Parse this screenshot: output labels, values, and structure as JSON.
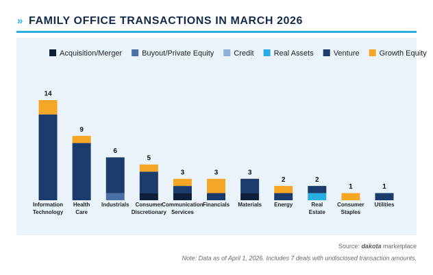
{
  "chart_data": {
    "type": "stacked-bar",
    "title": "FAMILY OFFICE TRANSACTIONS IN MARCH 2026",
    "categories": [
      "Information Technology",
      "Health Care",
      "Industrials",
      "Consumer Discretionary",
      "Communication Services",
      "Financials",
      "Materials",
      "Energy",
      "Real Estate",
      "Consumer Staples",
      "Utilities"
    ],
    "series": [
      {
        "name": "Acquisition/Merger",
        "color": "#0f1f3a",
        "values": [
          0,
          0,
          0,
          1,
          1,
          0,
          1,
          0,
          0,
          0,
          0
        ]
      },
      {
        "name": "Buyout/Private Equity",
        "color": "#4a6fa5",
        "values": [
          0,
          0,
          1,
          0,
          0,
          0,
          0,
          0,
          0,
          0,
          0
        ]
      },
      {
        "name": "Credit",
        "color": "#8fb0d6",
        "values": [
          0,
          0,
          0,
          0,
          0,
          0,
          0,
          0,
          0,
          0,
          0
        ]
      },
      {
        "name": "Real Assets",
        "color": "#29aee4",
        "values": [
          0,
          0,
          0,
          0,
          0,
          0,
          0,
          0,
          1,
          0,
          0
        ]
      },
      {
        "name": "Venture",
        "color": "#1a3b6b",
        "values": [
          12,
          8,
          5,
          3,
          1,
          1,
          2,
          1,
          1,
          0,
          1
        ]
      },
      {
        "name": "Growth Equity",
        "color": "#f5a623",
        "values": [
          2,
          1,
          0,
          1,
          1,
          2,
          0,
          1,
          0,
          1,
          0
        ]
      }
    ],
    "totals": [
      14,
      9,
      6,
      5,
      3,
      3,
      3,
      2,
      2,
      1,
      1
    ],
    "ylim": [
      0,
      14
    ],
    "source": [
      "Source:",
      "dakota",
      "marketplace"
    ],
    "note": "Note: Data as of April 1, 2026. Includes 7 deals with undisclosed transaction amounts."
  }
}
